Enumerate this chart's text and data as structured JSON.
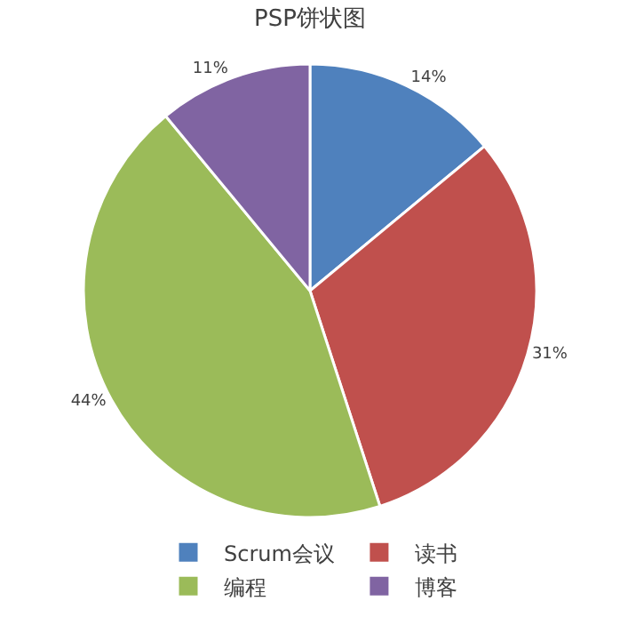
{
  "chart_data": {
    "type": "pie",
    "title": "PSP饼状图",
    "categories": [
      "Scrum会议",
      "读书",
      "编程",
      "博客"
    ],
    "values": [
      14,
      31,
      44,
      11
    ],
    "value_labels": [
      "14%",
      "31%",
      "44%",
      "11%"
    ],
    "colors": [
      "#4f81bd",
      "#c0504d",
      "#9bbb59",
      "#8064a2"
    ],
    "legend": "bottom"
  }
}
